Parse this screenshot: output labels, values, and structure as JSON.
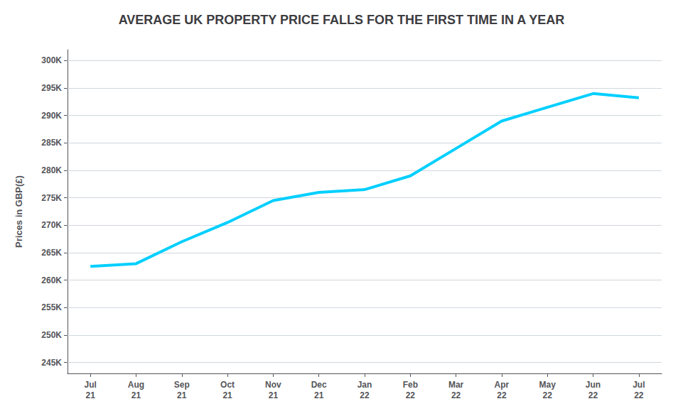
{
  "chart_data": {
    "type": "line",
    "title": "AVERAGE UK PROPERTY PRICE FALLS FOR THE FIRST TIME IN A YEAR",
    "categories": [
      "Jul\n21",
      "Aug\n21",
      "Sep\n21",
      "Oct\n21",
      "Nov\n21",
      "Dec\n21",
      "Jan\n22",
      "Feb\n22",
      "Mar\n22",
      "Apr\n22",
      "May\n22",
      "Jun\n22",
      "Jul\n22"
    ],
    "values": [
      262500,
      263000,
      267000,
      270500,
      274500,
      276000,
      276500,
      279000,
      284000,
      289000,
      291500,
      294000,
      293221
    ],
    "color": "#00CFFF",
    "ylabel": "Prices in GBP(£)",
    "ylim": [
      243000,
      302000
    ],
    "yticks": [
      {
        "value": 245000,
        "label": "245K"
      },
      {
        "value": 250000,
        "label": "250K"
      },
      {
        "value": 255000,
        "label": "255K"
      },
      {
        "value": 260000,
        "label": "260K"
      },
      {
        "value": 265000,
        "label": "265K"
      },
      {
        "value": 270000,
        "label": "270K"
      },
      {
        "value": 275000,
        "label": "275K"
      },
      {
        "value": 280000,
        "label": "280K"
      },
      {
        "value": 285000,
        "label": "285K"
      },
      {
        "value": 290000,
        "label": "290K"
      },
      {
        "value": 295000,
        "label": "295K"
      },
      {
        "value": 300000,
        "label": "300K"
      }
    ],
    "grid": true
  }
}
